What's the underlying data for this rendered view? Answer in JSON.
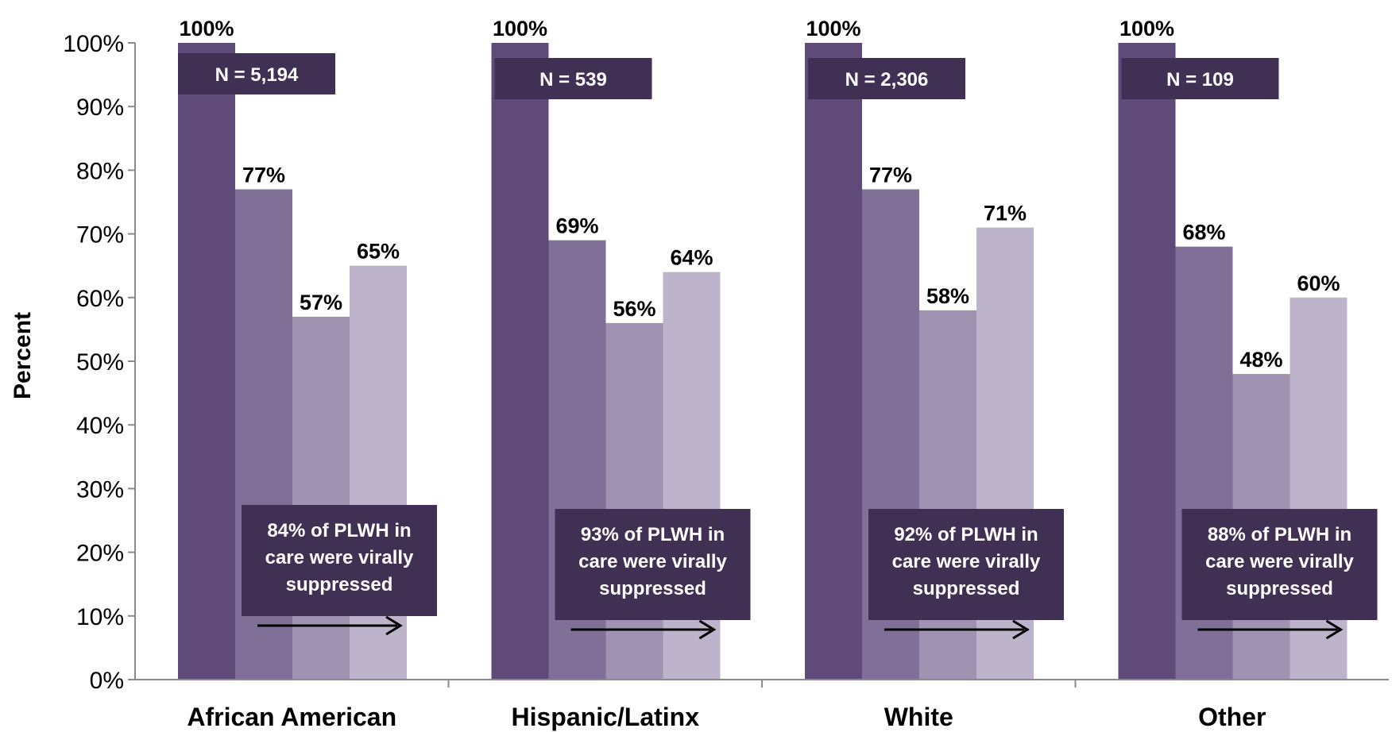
{
  "chart_data": {
    "type": "bar",
    "categories": [
      "African American",
      "Hispanic/Latinx",
      "White",
      "Other"
    ],
    "series": [
      {
        "values": [
          100,
          100,
          100,
          100
        ],
        "labels": [
          "100%",
          "100%",
          "100%",
          "100%"
        ]
      },
      {
        "values": [
          77,
          69,
          77,
          68
        ],
        "labels": [
          "77%",
          "69%",
          "77%",
          "68%"
        ]
      },
      {
        "values": [
          57,
          56,
          58,
          48
        ],
        "labels": [
          "57%",
          "56%",
          "58%",
          "48%"
        ]
      },
      {
        "values": [
          65,
          64,
          71,
          60
        ],
        "labels": [
          "65%",
          "64%",
          "71%",
          "60%"
        ]
      }
    ],
    "n_labels": [
      "N = 5,194",
      "N = 539",
      "N = 2,306",
      "N = 109"
    ],
    "annotations": [
      [
        "84% of PLWH in",
        "care were virally",
        "suppressed"
      ],
      [
        "93% of PLWH in",
        "care were virally",
        "suppressed"
      ],
      [
        "92% of PLWH in",
        "care were virally",
        "suppressed"
      ],
      [
        "88% of PLWH in",
        "care were virally",
        "suppressed"
      ]
    ],
    "yticks": [
      "0%",
      "10%",
      "20%",
      "30%",
      "40%",
      "50%",
      "60%",
      "70%",
      "80%",
      "90%",
      "100%"
    ],
    "ylabel": "Percent",
    "xlabel": "",
    "ylim": [
      0,
      100
    ],
    "grid": false,
    "legend": "none",
    "colors": [
      "#5f4a7a",
      "#806f97",
      "#a093b2",
      "#bdb3cb"
    ],
    "box_color": "#3f3054",
    "axis_color": "#8a8a8a"
  }
}
